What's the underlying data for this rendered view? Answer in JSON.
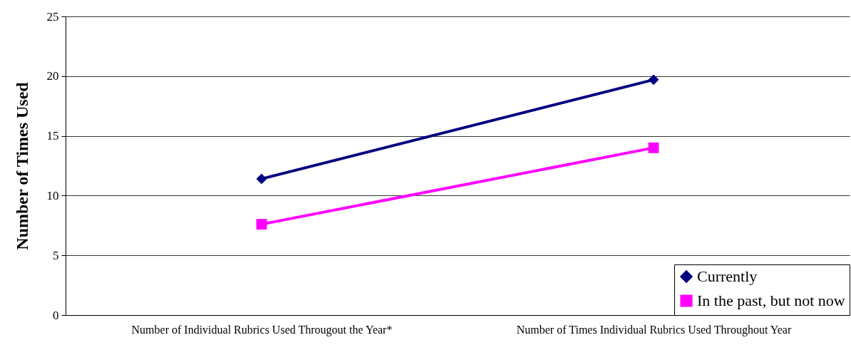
{
  "chart_data": {
    "type": "line",
    "ylabel": "Number of Times Used",
    "categories": [
      "Number of Individual Rubrics Used Througout the Year*",
      "Number of Times Individual Rubrics Used Throughout Year"
    ],
    "series": [
      {
        "name": "Currently",
        "color": "#000080",
        "values": [
          11.4,
          19.7
        ],
        "marker": "diamond"
      },
      {
        "name": "In the past, but not now",
        "color": "#ff00ff",
        "values": [
          7.6,
          14.0
        ],
        "marker": "square"
      }
    ],
    "ylim": [
      0,
      25
    ],
    "yticks": [
      0,
      5,
      10,
      15,
      20,
      25
    ],
    "grid": "y",
    "legend": "bottom right"
  }
}
